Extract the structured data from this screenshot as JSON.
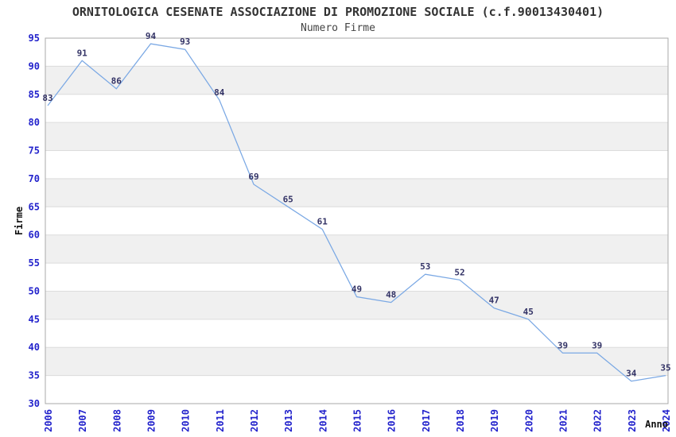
{
  "chart_data": {
    "type": "line",
    "title": "ORNITOLOGICA CESENATE ASSOCIAZIONE DI PROMOZIONE SOCIALE (c.f.90013430401)",
    "subtitle": "Numero Firme",
    "xlabel": "Anno",
    "ylabel": "Firme",
    "x": [
      "2006",
      "2007",
      "2008",
      "2009",
      "2010",
      "2011",
      "2012",
      "2013",
      "2014",
      "2015",
      "2016",
      "2017",
      "2018",
      "2019",
      "2020",
      "2021",
      "2022",
      "2023",
      "2024"
    ],
    "values": [
      83,
      91,
      86,
      94,
      93,
      84,
      69,
      65,
      61,
      49,
      48,
      53,
      52,
      47,
      45,
      39,
      39,
      34,
      35
    ],
    "ylim": [
      30,
      95
    ],
    "ytick_step": 5,
    "yticks": [
      95,
      90,
      85,
      80,
      75,
      70,
      65,
      60,
      55,
      50,
      45,
      40,
      35,
      30
    ],
    "grid": true,
    "banded_rows": true,
    "legend_position": "none",
    "colors": {
      "line": "#7aa8e4",
      "axis_labels": "#2323cc",
      "point_labels": "#333366",
      "band": "#f0f0f0",
      "grid": "#dcdcdc",
      "border": "#aaaaaa",
      "title": "#333333",
      "subtitle": "#444444",
      "axis_titles": "#111111"
    }
  }
}
